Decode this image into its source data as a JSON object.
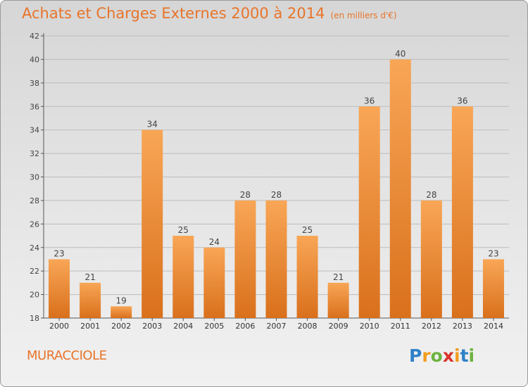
{
  "chart_data": {
    "type": "bar",
    "title": "Achats et Charges Externes 2000 à 2014",
    "subtitle": "(en milliers d'€)",
    "categories": [
      "2000",
      "2001",
      "2002",
      "2003",
      "2004",
      "2005",
      "2006",
      "2007",
      "2008",
      "2009",
      "2010",
      "2011",
      "2012",
      "2013",
      "2014"
    ],
    "values": [
      23,
      21,
      19,
      34,
      25,
      24,
      28,
      28,
      25,
      21,
      36,
      40,
      28,
      36,
      23
    ],
    "ylim": [
      18,
      42
    ],
    "yticks": [
      18,
      20,
      22,
      24,
      26,
      28,
      30,
      32,
      34,
      36,
      38,
      40,
      42
    ],
    "xlabel": "",
    "ylabel": "",
    "grid": true,
    "bar_color": "#e8862f",
    "text_color": "#e8742a"
  },
  "commune": "MURACCIOLE",
  "logo": {
    "letters": [
      "P",
      "r",
      "o",
      "x",
      "i",
      "t",
      "i"
    ],
    "colors": [
      "#2f80c8",
      "#f29b1f",
      "#6db33f",
      "#d9342b",
      "#f29b1f",
      "#2f80c8",
      "#6db33f"
    ]
  }
}
